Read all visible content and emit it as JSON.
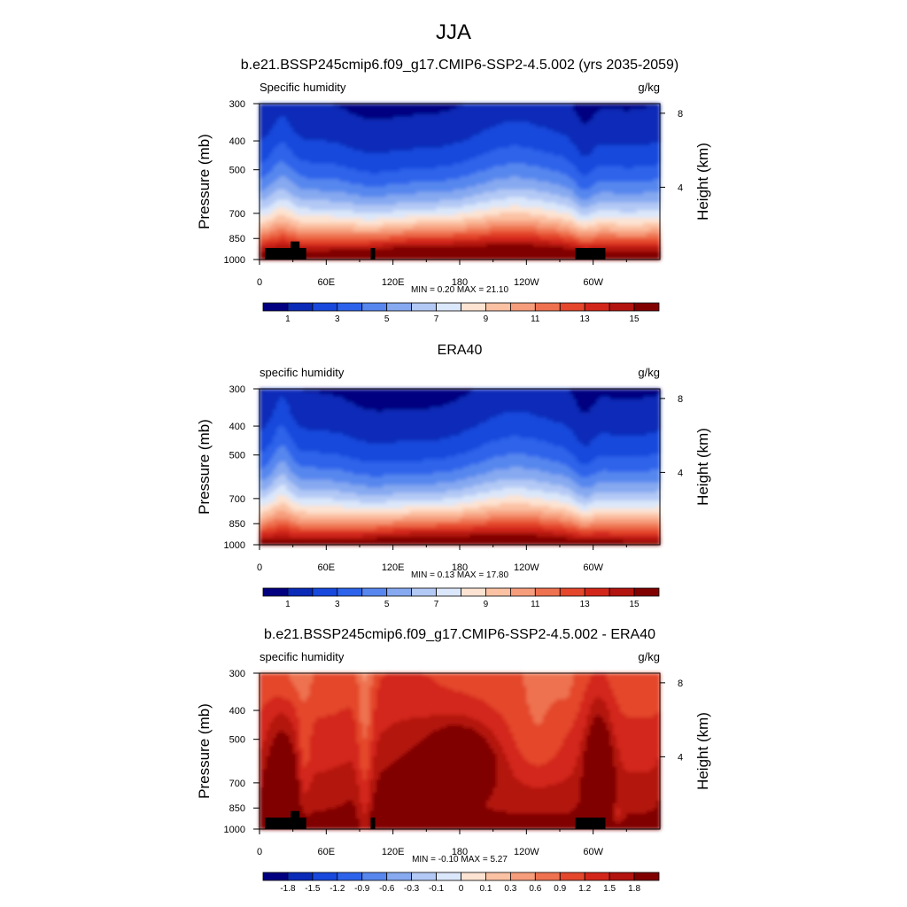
{
  "figure": {
    "title": "JJA"
  },
  "chart_data": [
    {
      "type": "heatmap",
      "title": "b.e21.BSSP245cmip6.f09_g17.CMIP6-SSP2-4.5.002 (yrs 2035-2059)",
      "left_label": "Specific humidity",
      "units": "g/kg",
      "ylabel": "Pressure (mb)",
      "ylabel_right": "Height (km)",
      "yticks": [
        "300",
        "400",
        "500",
        "700",
        "850",
        "1000"
      ],
      "ytick_values": [
        300,
        400,
        500,
        700,
        850,
        1000
      ],
      "ylim": [
        1000,
        300
      ],
      "y_scale": "log",
      "yticks_right": [
        "8",
        "4"
      ],
      "yticks_right_values": [
        8,
        4
      ],
      "xticks": [
        "0",
        "60E",
        "120E",
        "180",
        "120W",
        "60W"
      ],
      "xtick_values": [
        0,
        60,
        120,
        180,
        240,
        300
      ],
      "xlim": [
        0,
        360
      ],
      "stats": "MIN =   0.20  MAX =  21.10",
      "min": 0.2,
      "max": 21.1,
      "colorbar_labels": [
        "1",
        "3",
        "5",
        "7",
        "9",
        "11",
        "13",
        "15"
      ],
      "colorbar_levels": [
        1,
        2,
        3,
        4,
        5,
        6,
        7,
        8,
        9,
        10,
        11,
        12,
        13,
        14,
        15
      ],
      "colorbar_colors": [
        "#020080",
        "#0a2ab8",
        "#1848dc",
        "#2d63ea",
        "#5787ee",
        "#86a9f0",
        "#b3c9f5",
        "#dbe7fa",
        "#fde3d2",
        "#fbc1a3",
        "#f69d7c",
        "#ee7250",
        "#e4472c",
        "#d3261a",
        "#b3140f",
        "#800000"
      ],
      "terrain": true
    },
    {
      "type": "heatmap",
      "title": "ERA40",
      "left_label": "specific humidity",
      "units": "g/kg",
      "ylabel": "Pressure (mb)",
      "ylabel_right": "Height (km)",
      "yticks": [
        "300",
        "400",
        "500",
        "700",
        "850",
        "1000"
      ],
      "ytick_values": [
        300,
        400,
        500,
        700,
        850,
        1000
      ],
      "ylim": [
        1000,
        300
      ],
      "y_scale": "log",
      "yticks_right": [
        "8",
        "4"
      ],
      "yticks_right_values": [
        8,
        4
      ],
      "xticks": [
        "0",
        "60E",
        "120E",
        "180",
        "120W",
        "60W"
      ],
      "xtick_values": [
        0,
        60,
        120,
        180,
        240,
        300
      ],
      "xlim": [
        0,
        360
      ],
      "stats": "MIN =   0.13  MAX =  17.80",
      "min": 0.13,
      "max": 17.8,
      "colorbar_labels": [
        "1",
        "3",
        "5",
        "7",
        "9",
        "11",
        "13",
        "15"
      ],
      "colorbar_levels": [
        1,
        2,
        3,
        4,
        5,
        6,
        7,
        8,
        9,
        10,
        11,
        12,
        13,
        14,
        15
      ],
      "colorbar_colors": [
        "#020080",
        "#0a2ab8",
        "#1848dc",
        "#2d63ea",
        "#5787ee",
        "#86a9f0",
        "#b3c9f5",
        "#dbe7fa",
        "#fde3d2",
        "#fbc1a3",
        "#f69d7c",
        "#ee7250",
        "#e4472c",
        "#d3261a",
        "#b3140f",
        "#800000"
      ],
      "terrain": false
    },
    {
      "type": "heatmap",
      "title": "b.e21.BSSP245cmip6.f09_g17.CMIP6-SSP2-4.5.002 - ERA40",
      "left_label": "specific humidity",
      "units": "g/kg",
      "ylabel": "Pressure (mb)",
      "ylabel_right": "Height (km)",
      "yticks": [
        "300",
        "400",
        "500",
        "700",
        "850",
        "1000"
      ],
      "ytick_values": [
        300,
        400,
        500,
        700,
        850,
        1000
      ],
      "ylim": [
        1000,
        300
      ],
      "y_scale": "log",
      "yticks_right": [
        "8",
        "4"
      ],
      "yticks_right_values": [
        8,
        4
      ],
      "xticks": [
        "0",
        "60E",
        "120E",
        "180",
        "120W",
        "60W"
      ],
      "xtick_values": [
        0,
        60,
        120,
        180,
        240,
        300
      ],
      "xlim": [
        0,
        360
      ],
      "stats": "MIN =  -0.10  MAX =   5.27",
      "min": -0.1,
      "max": 5.27,
      "colorbar_labels": [
        "-1.8",
        "-1.5",
        "-1.2",
        "-0.9",
        "-0.6",
        "-0.3",
        "-0.1",
        "0",
        "0.1",
        "0.3",
        "0.6",
        "0.9",
        "1.2",
        "1.5",
        "1.8"
      ],
      "colorbar_levels": [
        -1.8,
        -1.5,
        -1.2,
        -0.9,
        -0.6,
        -0.3,
        -0.1,
        0,
        0.1,
        0.3,
        0.6,
        0.9,
        1.2,
        1.5,
        1.8
      ],
      "colorbar_colors": [
        "#020080",
        "#0a2ab8",
        "#1848dc",
        "#2d63ea",
        "#5787ee",
        "#86a9f0",
        "#b3c9f5",
        "#dbe7fa",
        "#fde3d2",
        "#fbc1a3",
        "#f69d7c",
        "#ee7250",
        "#e4472c",
        "#d3261a",
        "#b3140f",
        "#800000"
      ],
      "terrain": true
    }
  ]
}
